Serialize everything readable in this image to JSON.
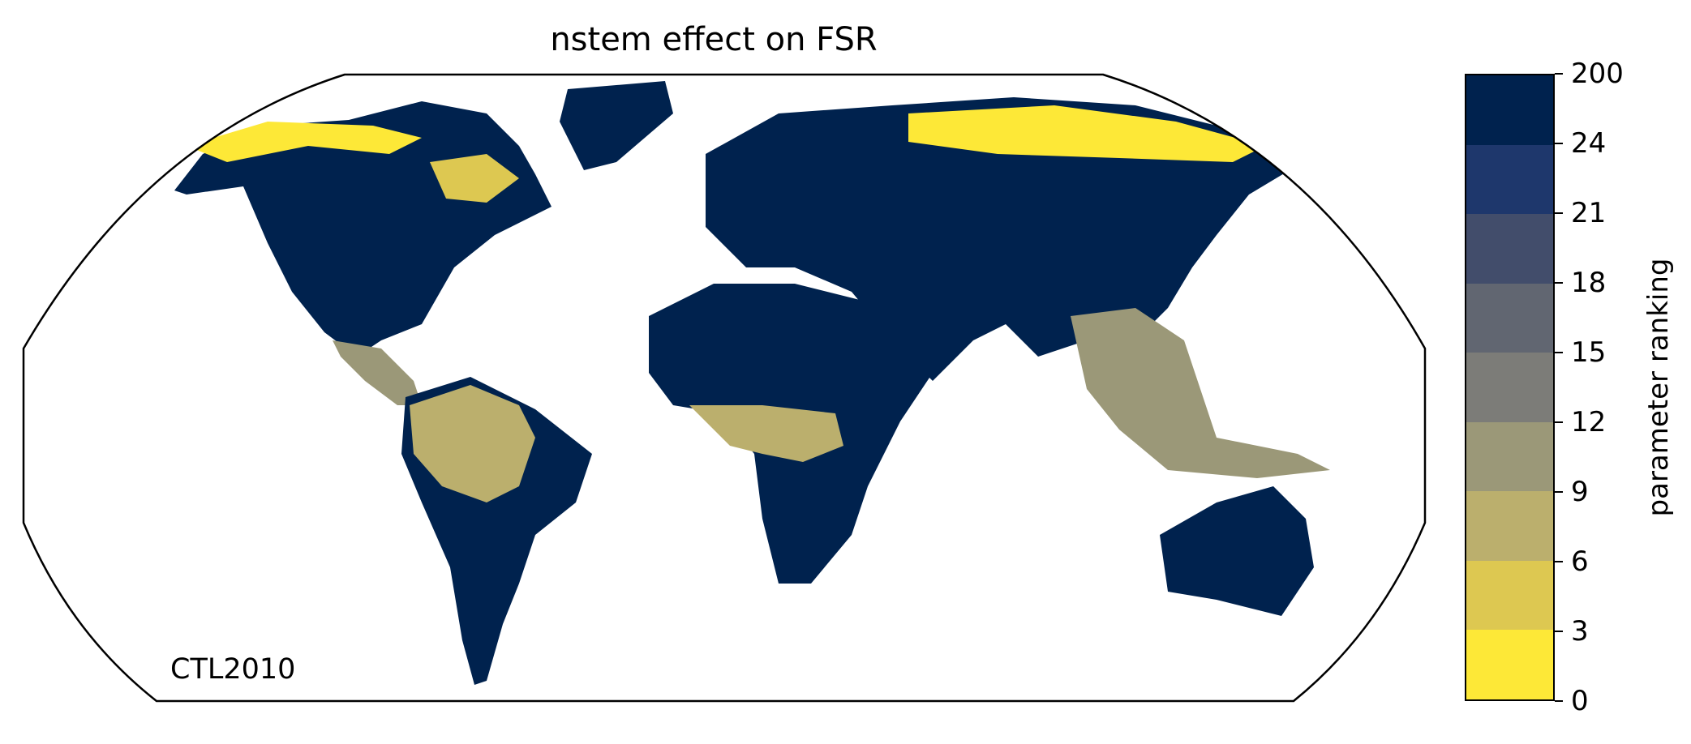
{
  "title": "nstem effect on FSR",
  "run_label": "CTL2010",
  "colorbar": {
    "label": "parameter ranking",
    "ticks": [
      "0",
      "3",
      "6",
      "9",
      "12",
      "15",
      "18",
      "21",
      "24",
      "200"
    ],
    "colors": [
      "#fde837",
      "#ddc851",
      "#bbaf6d",
      "#9b9878",
      "#7c7c78",
      "#616671",
      "#424d6b",
      "#1e376c",
      "#00224e"
    ]
  },
  "map": {
    "projection": "robinson",
    "coastline_color": "#888888",
    "land_color": "#00224e"
  }
}
